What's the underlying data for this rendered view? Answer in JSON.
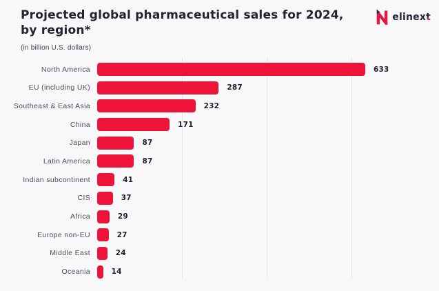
{
  "header": {
    "title_line1": "Projected global pharmaceutical sales for 2024,",
    "title_line2": "by region*",
    "subtitle": "(in billion U.S. dollars)",
    "logo_text_main": "elinex",
    "logo_text_accent": "t"
  },
  "chart_data": {
    "type": "bar",
    "orientation": "horizontal",
    "title": "Projected global pharmaceutical sales for 2024, by region*",
    "subtitle": "(in billion U.S. dollars)",
    "categories": [
      "North America",
      "EU (including UK)",
      "Southeast & East Asia",
      "China",
      "Japan",
      "Latin America",
      "Indian subcontinent",
      "CIS",
      "Africa",
      "Europe non-EU",
      "Middle East",
      "Oceania"
    ],
    "values": [
      633,
      287,
      232,
      171,
      87,
      87,
      41,
      37,
      29,
      27,
      24,
      14
    ],
    "value_labels_shown": true,
    "xlim": [
      0,
      650
    ],
    "gridline_values": [
      200,
      400,
      600
    ],
    "grid": true,
    "legend": "none",
    "bar_color": "#ee1339",
    "background_color": "#f8f8fa",
    "gridline_color": "#d7d8dd",
    "title_color": "#23242f",
    "category_label_color": "#4b4f5a",
    "value_label_color": "#1e212b"
  }
}
